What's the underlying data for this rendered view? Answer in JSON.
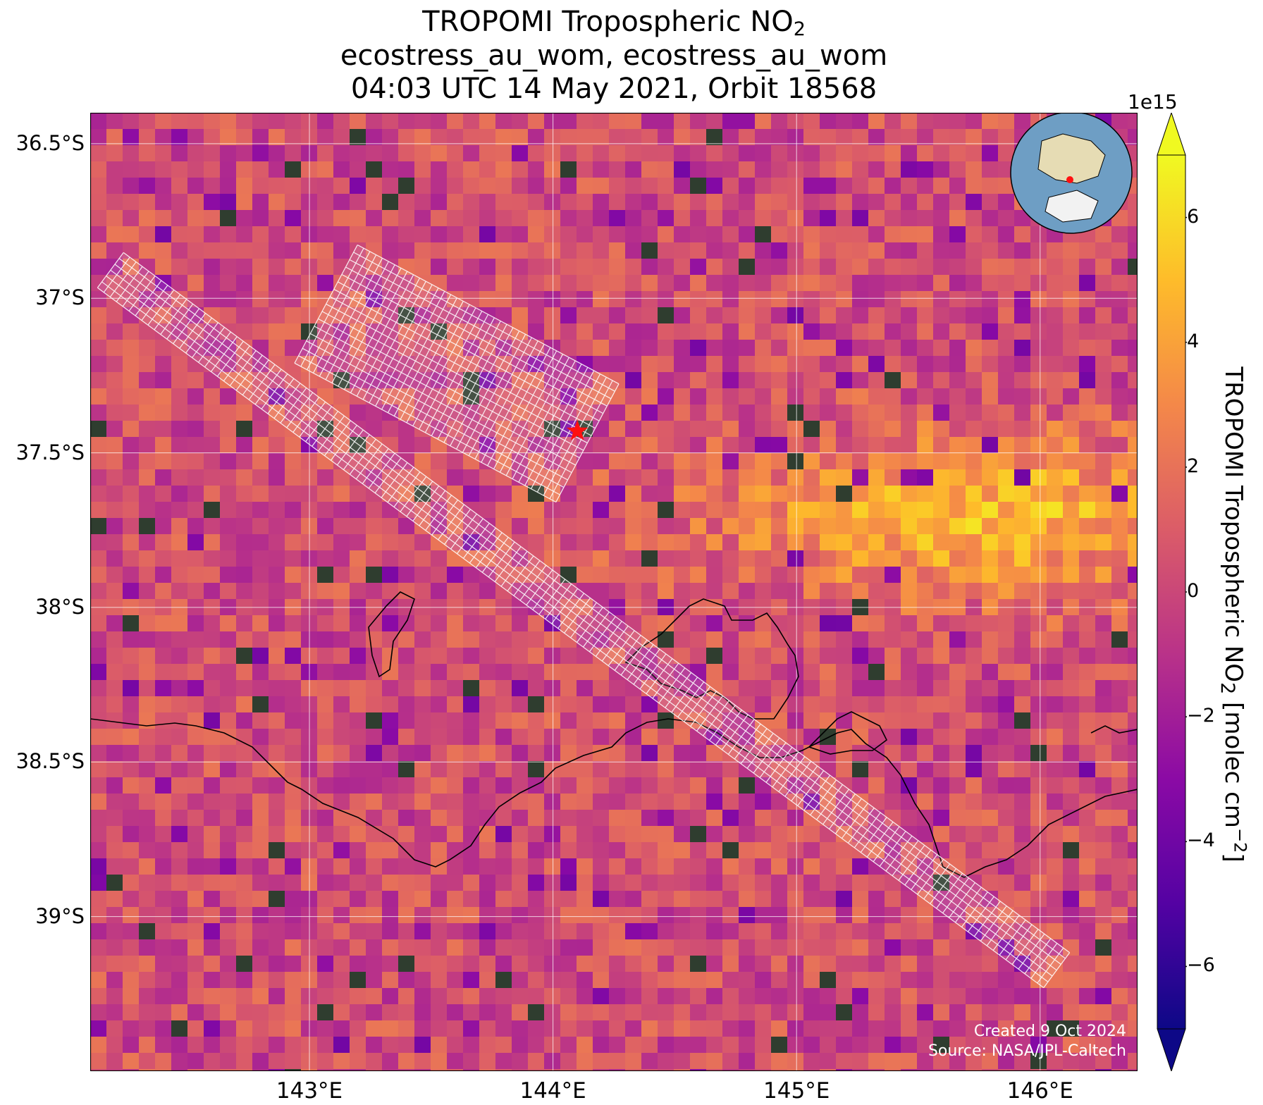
{
  "title": {
    "line1_prefix": "TROPOMI Tropospheric NO",
    "line1_sub": "2",
    "line2": "ecostress_au_wom, ecostress_au_wom",
    "line3": "04:03 UTC 14 May 2021, Orbit 18568"
  },
  "map": {
    "lon_range": [
      142.1,
      146.4
    ],
    "lat_range": [
      -39.5,
      -36.4
    ],
    "lat_ticks": [
      {
        "value": -36.5,
        "label": "36.5°S"
      },
      {
        "value": -37.0,
        "label": "37°S"
      },
      {
        "value": -37.5,
        "label": "37.5°S"
      },
      {
        "value": -38.0,
        "label": "38°S"
      },
      {
        "value": -38.5,
        "label": "38.5°S"
      },
      {
        "value": -39.0,
        "label": "39°S"
      }
    ],
    "lon_ticks": [
      {
        "value": 143,
        "label": "143°E"
      },
      {
        "value": 144,
        "label": "144°E"
      },
      {
        "value": 145,
        "label": "145°E"
      },
      {
        "value": 146,
        "label": "146°E"
      }
    ],
    "target_marker": {
      "lon": 144.1,
      "lat": -37.43,
      "color": "#ff1010"
    },
    "colormap": "plasma",
    "gridlines": true
  },
  "colorbar": {
    "exponent": "1e15",
    "label_prefix": "TROPOMI Tropospheric NO",
    "label_sub": "2",
    "label_mid": " [molec cm",
    "label_sup": "−2",
    "label_suffix": "]",
    "range": [
      -7,
      7
    ],
    "ticks": [
      {
        "value": 6,
        "label": "6"
      },
      {
        "value": 4,
        "label": "4"
      },
      {
        "value": 2,
        "label": "2"
      },
      {
        "value": 0,
        "label": "0"
      },
      {
        "value": -2,
        "label": "−2"
      },
      {
        "value": -4,
        "label": "−4"
      },
      {
        "value": -6,
        "label": "−6"
      }
    ],
    "colors": [
      "#0d0887",
      "#5402a3",
      "#8b0aa5",
      "#b93289",
      "#db5c68",
      "#f48849",
      "#febc2a",
      "#f0f921"
    ]
  },
  "credit": {
    "line1": "Created 9 Oct 2024",
    "line2": "Source: NASA/JPL-Caltech"
  }
}
